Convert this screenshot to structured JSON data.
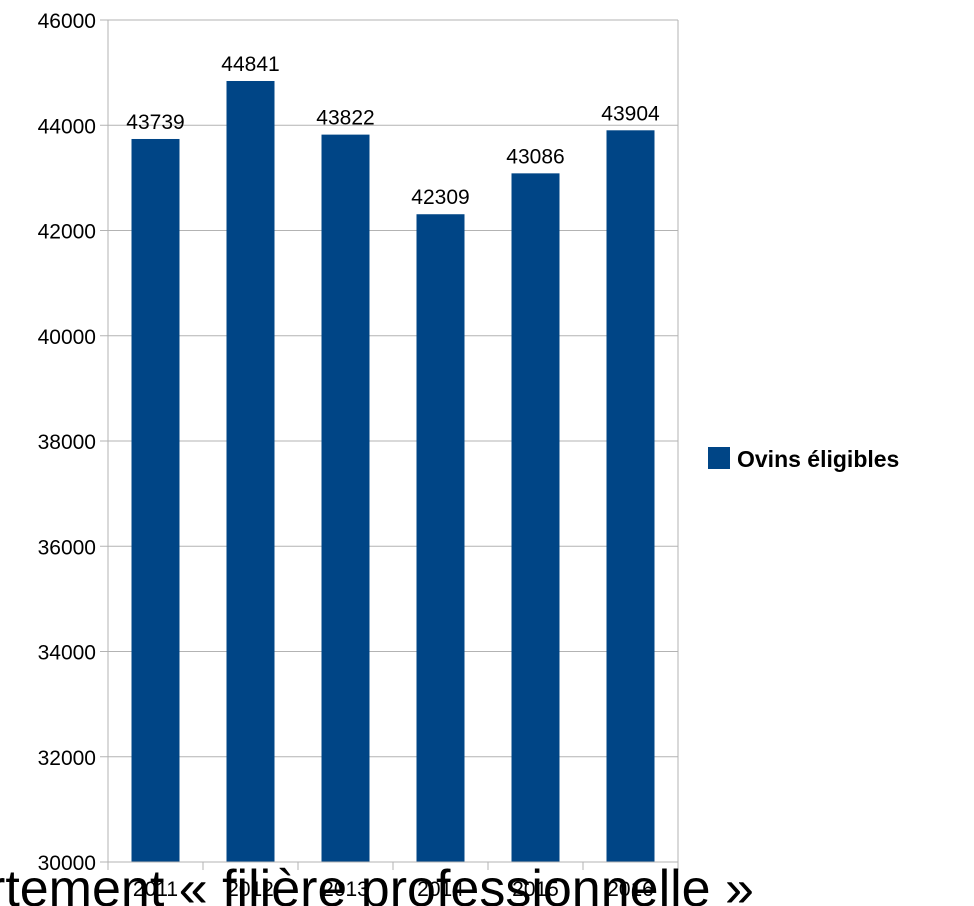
{
  "chart_data": {
    "type": "bar",
    "categories": [
      "2011",
      "2012",
      "2013",
      "2014",
      "2015",
      "2016"
    ],
    "series": [
      {
        "name": "Ovins éligibles",
        "color": "#004586",
        "values": [
          43739,
          44841,
          43822,
          42309,
          43086,
          43904
        ]
      }
    ],
    "data_labels": [
      "43739",
      "44841",
      "43822",
      "42309",
      "43086",
      "43904"
    ],
    "ylim": [
      30000,
      46000
    ],
    "yticks": [
      "30000",
      "32000",
      "34000",
      "36000",
      "38000",
      "40000",
      "42000",
      "44000",
      "46000"
    ],
    "grid": true,
    "legend": {
      "position": "right",
      "label": "Ovins éligibles"
    }
  },
  "overlay_text": "rtement « filière professionnelle »"
}
